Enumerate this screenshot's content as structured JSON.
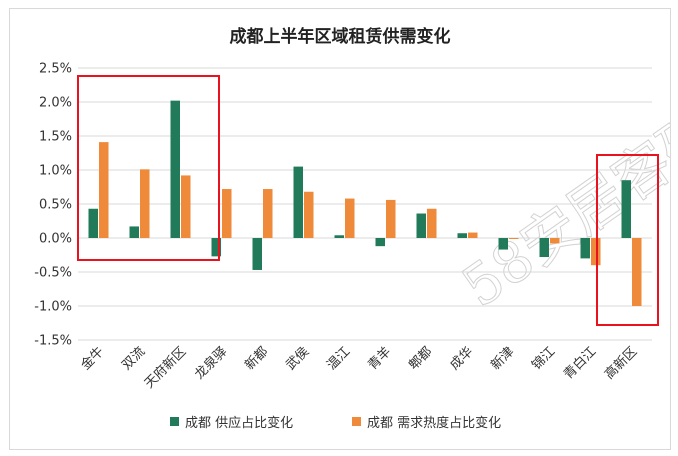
{
  "chart_data": {
    "type": "bar",
    "title": "成都上半年区域租赁供需变化",
    "xlabel": "",
    "ylabel": "",
    "categories": [
      "金牛",
      "双流",
      "天府新区",
      "龙泉驿",
      "新都",
      "武侯",
      "温江",
      "青羊",
      "郫都",
      "成华",
      "新津",
      "锦江",
      "青白江",
      "高新区"
    ],
    "series": [
      {
        "name": "成都 供应占比变化",
        "color": "#217a5a",
        "values": [
          0.43,
          0.17,
          2.02,
          -0.27,
          -0.47,
          1.05,
          0.04,
          -0.12,
          0.36,
          0.07,
          -0.17,
          -0.28,
          -0.3,
          0.85
        ]
      },
      {
        "name": "成都 需求热度占比变化",
        "color": "#ee8a3a",
        "values": [
          1.41,
          1.01,
          0.92,
          0.72,
          0.72,
          0.68,
          0.58,
          0.56,
          0.43,
          0.08,
          0.0,
          -0.08,
          -0.4,
          -1.0
        ]
      }
    ],
    "ylim": [
      -1.5,
      2.5
    ],
    "yticks": [
      "2.5%",
      "2.0%",
      "1.5%",
      "1.0%",
      "0.5%",
      "0.0%",
      "-0.5%",
      "-1.0%",
      "-1.5%"
    ],
    "grid": true,
    "legend": "bottom",
    "watermark": "58安居客研究院",
    "highlights": [
      {
        "categories": [
          "金牛",
          "双流",
          "天府新区"
        ],
        "color": "#e8131e"
      },
      {
        "categories": [
          "高新区"
        ],
        "color": "#e8131e"
      }
    ]
  }
}
